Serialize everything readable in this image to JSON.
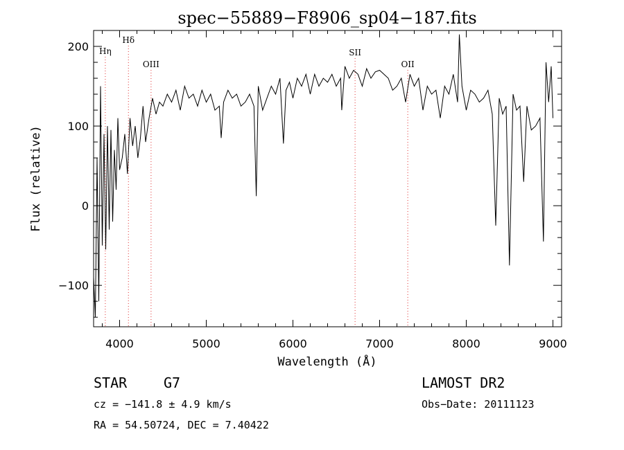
{
  "chart_data": {
    "type": "line",
    "title": "spec−55889−F8906_sp04−187.fits",
    "xlabel": "Wavelength (Å)",
    "ylabel": "Flux (relative)",
    "xlim": [
      3700,
      9100
    ],
    "ylim": [
      -152,
      220
    ],
    "x_ticks": [
      4000,
      5000,
      6000,
      7000,
      8000,
      9000
    ],
    "y_ticks": [
      -100,
      0,
      100,
      200
    ],
    "grid": false,
    "line_color": "#000000",
    "marker_color": "#e03030",
    "spectral_lines": [
      {
        "label": "Hη",
        "wavelength": 3835
      },
      {
        "label": "Hδ",
        "wavelength": 4102
      },
      {
        "label": "OIII",
        "wavelength": 4363
      },
      {
        "label": "SII",
        "wavelength": 6717
      },
      {
        "label": "OII",
        "wavelength": 7325
      }
    ],
    "series": [
      {
        "x": [
          3700,
          3720,
          3740,
          3760,
          3780,
          3800,
          3820,
          3840,
          3860,
          3880,
          3900,
          3920,
          3940,
          3960,
          3980,
          4000,
          4030,
          4060,
          4090,
          4120,
          4150,
          4180,
          4210,
          4240,
          4270,
          4300,
          4340,
          4380,
          4420,
          4460,
          4500,
          4550,
          4600,
          4650,
          4700,
          4750,
          4800,
          4850,
          4900,
          4950,
          5000,
          5050,
          5100,
          5150,
          5172,
          5200,
          5250,
          5300,
          5350,
          5400,
          5450,
          5500,
          5550,
          5577,
          5600,
          5650,
          5700,
          5750,
          5800,
          5850,
          5890,
          5920,
          5960,
          6000,
          6050,
          6100,
          6150,
          6200,
          6250,
          6300,
          6350,
          6400,
          6450,
          6500,
          6550,
          6563,
          6600,
          6650,
          6700,
          6750,
          6800,
          6850,
          6900,
          6950,
          7000,
          7050,
          7100,
          7150,
          7200,
          7250,
          7300,
          7350,
          7400,
          7450,
          7500,
          7550,
          7600,
          7650,
          7700,
          7750,
          7800,
          7850,
          7900,
          7920,
          7950,
          8000,
          8050,
          8100,
          8150,
          8200,
          8250,
          8300,
          8340,
          8380,
          8420,
          8460,
          8498,
          8540,
          8580,
          8620,
          8662,
          8700,
          8750,
          8800,
          8850,
          8890,
          8920,
          8950,
          8980,
          9000
        ],
        "y": [
          -90,
          -140,
          60,
          -120,
          150,
          -50,
          90,
          -55,
          100,
          -30,
          95,
          -20,
          70,
          20,
          110,
          45,
          60,
          90,
          40,
          110,
          75,
          100,
          60,
          85,
          125,
          80,
          110,
          135,
          115,
          130,
          125,
          140,
          130,
          145,
          120,
          150,
          135,
          140,
          125,
          145,
          130,
          140,
          120,
          125,
          85,
          130,
          145,
          135,
          140,
          125,
          130,
          140,
          125,
          12,
          150,
          120,
          135,
          150,
          140,
          160,
          78,
          145,
          155,
          135,
          160,
          150,
          165,
          140,
          165,
          150,
          160,
          155,
          165,
          150,
          160,
          120,
          175,
          160,
          170,
          165,
          150,
          172,
          160,
          168,
          170,
          165,
          160,
          145,
          150,
          160,
          130,
          165,
          150,
          160,
          120,
          150,
          140,
          145,
          110,
          150,
          140,
          165,
          130,
          215,
          150,
          120,
          145,
          140,
          130,
          135,
          145,
          115,
          -25,
          135,
          115,
          125,
          -75,
          140,
          120,
          125,
          30,
          125,
          95,
          100,
          110,
          -45,
          180,
          130,
          175,
          110
        ]
      }
    ]
  },
  "info": {
    "object_type": "STAR",
    "subclass": "G7",
    "survey": "LAMOST DR2",
    "cz": "cz = −141.8 ± 4.9 km/s",
    "obs_date": "Obs−Date: 20111123",
    "radec": "RA =  54.50724, DEC =   7.40422"
  }
}
